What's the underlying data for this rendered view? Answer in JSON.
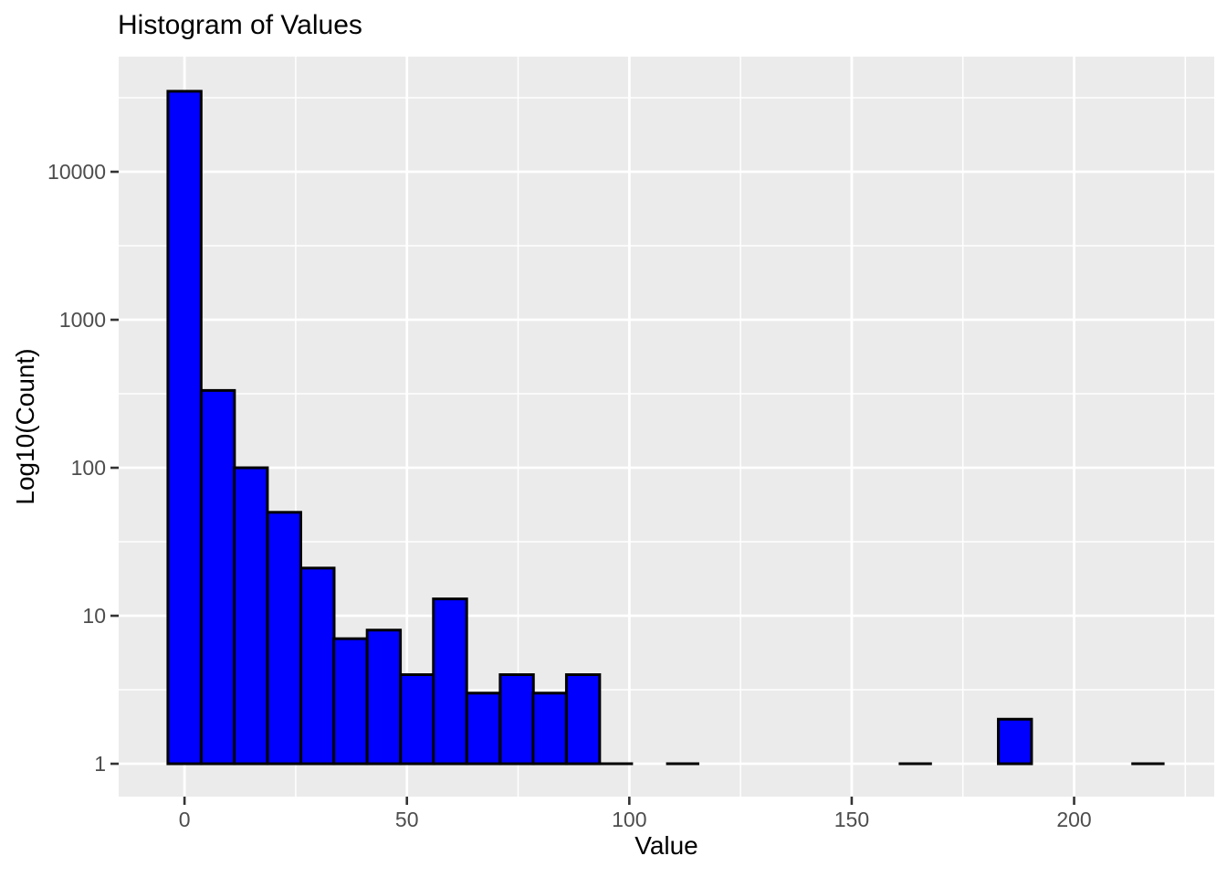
{
  "chart_data": {
    "type": "bar",
    "subtype": "histogram",
    "title": "Histogram of Values",
    "xlabel": "Value",
    "ylabel": "Log10(Count)",
    "y_scale": "log10",
    "grid": true,
    "legend": "none",
    "bin_width": 7.47,
    "bars": [
      {
        "center": 0,
        "count": 35000
      },
      {
        "center": 7.5,
        "count": 333
      },
      {
        "center": 14.9,
        "count": 100
      },
      {
        "center": 22.4,
        "count": 50
      },
      {
        "center": 29.9,
        "count": 21
      },
      {
        "center": 37.3,
        "count": 7
      },
      {
        "center": 44.8,
        "count": 8
      },
      {
        "center": 52.3,
        "count": 4
      },
      {
        "center": 59.7,
        "count": 13
      },
      {
        "center": 67.2,
        "count": 3
      },
      {
        "center": 74.7,
        "count": 4
      },
      {
        "center": 82.1,
        "count": 3
      },
      {
        "center": 89.6,
        "count": 4
      },
      {
        "center": 97.1,
        "count": 1
      },
      {
        "center": 112.0,
        "count": 1
      },
      {
        "center": 164.3,
        "count": 1
      },
      {
        "center": 186.7,
        "count": 2
      },
      {
        "center": 216.6,
        "count": 1
      }
    ],
    "x_ticks": [
      0,
      50,
      100,
      150,
      200
    ],
    "x_minor_ticks": [
      25,
      75,
      125,
      175,
      225
    ],
    "y_ticks": [
      1,
      10,
      100,
      1000,
      10000
    ],
    "xlim": [
      -14.8,
      231.5
    ],
    "ylim_log10": [
      -0.222,
      4.778
    ],
    "style": {
      "panel_bg": "#EBEBEB",
      "grid_color": "#FFFFFF",
      "bar_fill": "#0000FF",
      "bar_stroke": "#000000",
      "tick_color": "#333333",
      "tick_label_color": "#4D4D4D",
      "axis_title_color": "#000000",
      "title_color": "#000000"
    }
  }
}
